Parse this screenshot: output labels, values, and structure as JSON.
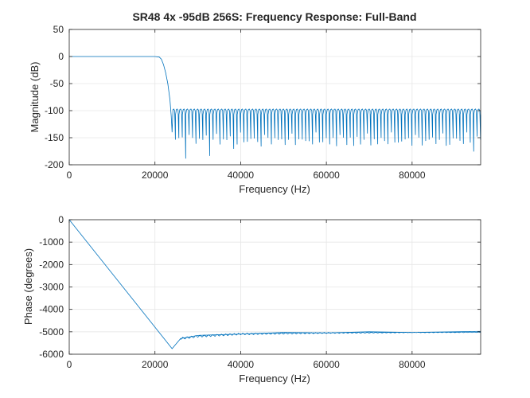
{
  "figure_title": "SR48 4x -95dB 256S: Frequency Response: Full-Band",
  "colors": {
    "line": "#0072BD",
    "axis": "#262626",
    "grid": "#e6e6e6",
    "background": "#ffffff"
  },
  "chart_data": [
    {
      "type": "line",
      "title": "SR48 4x -95dB 256S: Frequency Response: Full-Band",
      "xlabel": "Frequency (Hz)",
      "ylabel": "Magnitude (dB)",
      "xlim": [
        0,
        96000
      ],
      "ylim": [
        -200,
        50
      ],
      "xticks": [
        0,
        20000,
        40000,
        60000,
        80000
      ],
      "xtick_labels": [
        "0",
        "20000",
        "40000",
        "60000",
        "80000"
      ],
      "yticks": [
        -200,
        -150,
        -100,
        -50,
        0,
        50
      ],
      "ytick_labels": [
        "-200",
        "-150",
        "-100",
        "-50",
        "0",
        "50"
      ],
      "grid": true,
      "series": [
        {
          "passband_end_hz": 21000,
          "stopband_start_hz": 24000,
          "x": [
            0,
            20000,
            21000,
            21500,
            22000,
            22500,
            23000,
            23500,
            23800,
            24000
          ],
          "y": [
            0,
            0,
            -1,
            -5,
            -15,
            -30,
            -50,
            -80,
            -110,
            -140
          ],
          "stopband_ripple_peak_db": -97,
          "stopband_notch_floor_db": [
            -190,
            -140
          ]
        }
      ]
    },
    {
      "type": "line",
      "title": "",
      "xlabel": "Frequency (Hz)",
      "ylabel": "Phase (degrees)",
      "xlim": [
        0,
        96000
      ],
      "ylim": [
        -6000,
        0
      ],
      "xticks": [
        0,
        20000,
        40000,
        60000,
        80000
      ],
      "xtick_labels": [
        "0",
        "20000",
        "40000",
        "60000",
        "80000"
      ],
      "yticks": [
        -6000,
        -5000,
        -4000,
        -3000,
        -2000,
        -1000,
        0
      ],
      "ytick_labels": [
        "-6000",
        "-5000",
        "-4000",
        "-3000",
        "-2000",
        "-1000",
        "0"
      ],
      "grid": true,
      "series": [
        {
          "x": [
            0,
            24000,
            26000,
            30000,
            40000,
            50000,
            60000,
            70000,
            80000,
            96000
          ],
          "y": [
            0,
            -5750,
            -5300,
            -5200,
            -5100,
            -5070,
            -5050,
            -5040,
            -5030,
            -5020
          ]
        }
      ]
    }
  ]
}
